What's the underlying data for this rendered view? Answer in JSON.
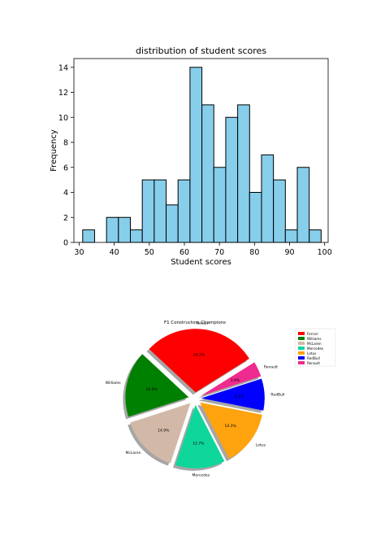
{
  "colors": {
    "bar_fill": "#87ceeb",
    "bar_edge": "#000000",
    "axis": "#000000"
  },
  "chart_data": [
    {
      "type": "bar",
      "subtype": "histogram",
      "title": "distribution of student scores",
      "xlabel": "Student scores",
      "ylabel": "Frequency",
      "xlim": [
        28.5,
        101
      ],
      "ylim": [
        0,
        14.7
      ],
      "xticks": [
        30,
        40,
        50,
        60,
        70,
        80,
        90,
        100
      ],
      "yticks": [
        0,
        2,
        4,
        6,
        8,
        10,
        12,
        14
      ],
      "bin_edges": [
        31,
        34.4,
        37.8,
        41.2,
        44.6,
        48,
        51.4,
        54.8,
        58.2,
        61.6,
        65,
        68.4,
        71.8,
        75.2,
        78.6,
        82,
        85.4,
        88.8,
        92.2,
        95.6,
        99
      ],
      "values": [
        1,
        0,
        2,
        2,
        1,
        5,
        5,
        3,
        5,
        14,
        11,
        6,
        10,
        11,
        4,
        7,
        5,
        1,
        6,
        1
      ],
      "grid": false
    },
    {
      "type": "pie",
      "title": "F1 Constructors Champions",
      "labels": [
        "Ferrari",
        "Williams",
        "McLaren",
        "Mercedes",
        "Lotus",
        "RedBull",
        "Renault"
      ],
      "values": [
        29.2,
        16.9,
        14.9,
        12.7,
        14.3,
        8.1,
        3.9
      ],
      "pct_labels": [
        "29.2%",
        "16.9%",
        "14.9%",
        "12.7%",
        "14.3%",
        "8.1%",
        "3.9%"
      ],
      "colors": [
        "#ff0000",
        "#008000",
        "#d2b9a7",
        "#0fd69b",
        "#ffa30f",
        "#0000ff",
        "#ee2b8f"
      ],
      "explode": 0.1,
      "start_angle_deg": 32,
      "shadow": true,
      "legend": {
        "placement": "top-right",
        "entries": [
          "Ferrari",
          "Williams",
          "McLaren",
          "Mercedes",
          "Lotus",
          "RedBull",
          "Renault"
        ]
      }
    }
  ]
}
